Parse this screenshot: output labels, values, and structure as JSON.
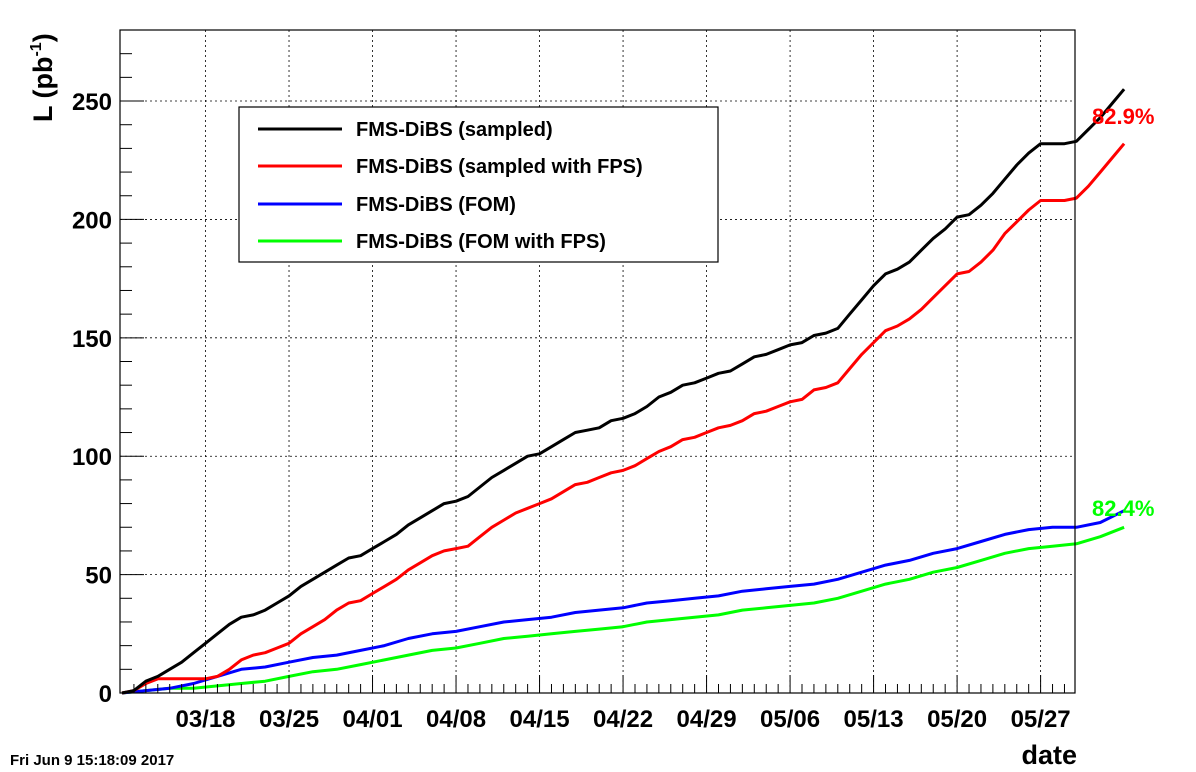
{
  "timestamp": "Fri Jun  9 15:18:09 2017",
  "annotations": [
    {
      "text": "82.9%",
      "color": "#ff0000",
      "anchor_value": 232
    },
    {
      "text": "82.4%",
      "color": "#00ff00",
      "anchor_value": 70
    }
  ],
  "chart_data": {
    "type": "line",
    "title": "",
    "xlabel": "date",
    "ylabel": "L (pb⁻¹)",
    "ylabel_main": "L (pb",
    "ylabel_sup": "-1",
    "ylabel_end": ")",
    "xlim": [
      "2017-03-11",
      "2017-05-30"
    ],
    "ylim": [
      0,
      280
    ],
    "grid": true,
    "legend_position": "top-left",
    "yticks": [
      0,
      50,
      100,
      150,
      200,
      250
    ],
    "xticks": [
      {
        "date": "2017-03-18",
        "label": "03/18"
      },
      {
        "date": "2017-03-25",
        "label": "03/25"
      },
      {
        "date": "2017-04-01",
        "label": "04/01"
      },
      {
        "date": "2017-04-08",
        "label": "04/08"
      },
      {
        "date": "2017-04-15",
        "label": "04/15"
      },
      {
        "date": "2017-04-22",
        "label": "04/22"
      },
      {
        "date": "2017-04-29",
        "label": "04/29"
      },
      {
        "date": "2017-05-06",
        "label": "05/06"
      },
      {
        "date": "2017-05-13",
        "label": "05/13"
      },
      {
        "date": "2017-05-20",
        "label": "05/20"
      },
      {
        "date": "2017-05-27",
        "label": "05/27"
      }
    ],
    "series": [
      {
        "name": "FMS-DiBS (sampled)",
        "color": "#000000",
        "points": [
          [
            "2017-03-11",
            0
          ],
          [
            "2017-03-12",
            1
          ],
          [
            "2017-03-13",
            5
          ],
          [
            "2017-03-14",
            7
          ],
          [
            "2017-03-15",
            10
          ],
          [
            "2017-03-16",
            13
          ],
          [
            "2017-03-17",
            17
          ],
          [
            "2017-03-18",
            21
          ],
          [
            "2017-03-19",
            25
          ],
          [
            "2017-03-20",
            29
          ],
          [
            "2017-03-21",
            32
          ],
          [
            "2017-03-22",
            33
          ],
          [
            "2017-03-23",
            35
          ],
          [
            "2017-03-24",
            38
          ],
          [
            "2017-03-25",
            41
          ],
          [
            "2017-03-26",
            45
          ],
          [
            "2017-03-27",
            48
          ],
          [
            "2017-03-28",
            51
          ],
          [
            "2017-03-29",
            54
          ],
          [
            "2017-03-30",
            57
          ],
          [
            "2017-03-31",
            58
          ],
          [
            "2017-04-01",
            61
          ],
          [
            "2017-04-02",
            64
          ],
          [
            "2017-04-03",
            67
          ],
          [
            "2017-04-04",
            71
          ],
          [
            "2017-04-05",
            74
          ],
          [
            "2017-04-06",
            77
          ],
          [
            "2017-04-07",
            80
          ],
          [
            "2017-04-08",
            81
          ],
          [
            "2017-04-09",
            83
          ],
          [
            "2017-04-10",
            87
          ],
          [
            "2017-04-11",
            91
          ],
          [
            "2017-04-12",
            94
          ],
          [
            "2017-04-13",
            97
          ],
          [
            "2017-04-14",
            100
          ],
          [
            "2017-04-15",
            101
          ],
          [
            "2017-04-16",
            104
          ],
          [
            "2017-04-17",
            107
          ],
          [
            "2017-04-18",
            110
          ],
          [
            "2017-04-19",
            111
          ],
          [
            "2017-04-20",
            112
          ],
          [
            "2017-04-21",
            115
          ],
          [
            "2017-04-22",
            116
          ],
          [
            "2017-04-23",
            118
          ],
          [
            "2017-04-24",
            121
          ],
          [
            "2017-04-25",
            125
          ],
          [
            "2017-04-26",
            127
          ],
          [
            "2017-04-27",
            130
          ],
          [
            "2017-04-28",
            131
          ],
          [
            "2017-04-29",
            133
          ],
          [
            "2017-04-30",
            135
          ],
          [
            "2017-05-01",
            136
          ],
          [
            "2017-05-02",
            139
          ],
          [
            "2017-05-03",
            142
          ],
          [
            "2017-05-04",
            143
          ],
          [
            "2017-05-05",
            145
          ],
          [
            "2017-05-06",
            147
          ],
          [
            "2017-05-07",
            148
          ],
          [
            "2017-05-08",
            151
          ],
          [
            "2017-05-09",
            152
          ],
          [
            "2017-05-10",
            154
          ],
          [
            "2017-05-11",
            160
          ],
          [
            "2017-05-12",
            166
          ],
          [
            "2017-05-13",
            172
          ],
          [
            "2017-05-14",
            177
          ],
          [
            "2017-05-15",
            179
          ],
          [
            "2017-05-16",
            182
          ],
          [
            "2017-05-17",
            187
          ],
          [
            "2017-05-18",
            192
          ],
          [
            "2017-05-19",
            196
          ],
          [
            "2017-05-20",
            201
          ],
          [
            "2017-05-21",
            202
          ],
          [
            "2017-05-22",
            206
          ],
          [
            "2017-05-23",
            211
          ],
          [
            "2017-05-24",
            217
          ],
          [
            "2017-05-25",
            223
          ],
          [
            "2017-05-26",
            228
          ],
          [
            "2017-05-27",
            232
          ],
          [
            "2017-05-28",
            232
          ],
          [
            "2017-05-29",
            232
          ],
          [
            "2017-05-30",
            233
          ],
          [
            "2017-05-31",
            238
          ],
          [
            "2017-06-01",
            243
          ],
          [
            "2017-06-02",
            249
          ],
          [
            "2017-06-03",
            255
          ]
        ]
      },
      {
        "name": "FMS-DiBS (sampled with FPS)",
        "color": "#ff0000",
        "points": [
          [
            "2017-03-11",
            0
          ],
          [
            "2017-03-12",
            1
          ],
          [
            "2017-03-13",
            4
          ],
          [
            "2017-03-14",
            6
          ],
          [
            "2017-03-15",
            6
          ],
          [
            "2017-03-16",
            6
          ],
          [
            "2017-03-17",
            6
          ],
          [
            "2017-03-18",
            6
          ],
          [
            "2017-03-19",
            7
          ],
          [
            "2017-03-20",
            10
          ],
          [
            "2017-03-21",
            14
          ],
          [
            "2017-03-22",
            16
          ],
          [
            "2017-03-23",
            17
          ],
          [
            "2017-03-24",
            19
          ],
          [
            "2017-03-25",
            21
          ],
          [
            "2017-03-26",
            25
          ],
          [
            "2017-03-27",
            28
          ],
          [
            "2017-03-28",
            31
          ],
          [
            "2017-03-29",
            35
          ],
          [
            "2017-03-30",
            38
          ],
          [
            "2017-03-31",
            39
          ],
          [
            "2017-04-01",
            42
          ],
          [
            "2017-04-02",
            45
          ],
          [
            "2017-04-03",
            48
          ],
          [
            "2017-04-04",
            52
          ],
          [
            "2017-04-05",
            55
          ],
          [
            "2017-04-06",
            58
          ],
          [
            "2017-04-07",
            60
          ],
          [
            "2017-04-08",
            61
          ],
          [
            "2017-04-09",
            62
          ],
          [
            "2017-04-10",
            66
          ],
          [
            "2017-04-11",
            70
          ],
          [
            "2017-04-12",
            73
          ],
          [
            "2017-04-13",
            76
          ],
          [
            "2017-04-14",
            78
          ],
          [
            "2017-04-15",
            80
          ],
          [
            "2017-04-16",
            82
          ],
          [
            "2017-04-17",
            85
          ],
          [
            "2017-04-18",
            88
          ],
          [
            "2017-04-19",
            89
          ],
          [
            "2017-04-20",
            91
          ],
          [
            "2017-04-21",
            93
          ],
          [
            "2017-04-22",
            94
          ],
          [
            "2017-04-23",
            96
          ],
          [
            "2017-04-24",
            99
          ],
          [
            "2017-04-25",
            102
          ],
          [
            "2017-04-26",
            104
          ],
          [
            "2017-04-27",
            107
          ],
          [
            "2017-04-28",
            108
          ],
          [
            "2017-04-29",
            110
          ],
          [
            "2017-04-30",
            112
          ],
          [
            "2017-05-01",
            113
          ],
          [
            "2017-05-02",
            115
          ],
          [
            "2017-05-03",
            118
          ],
          [
            "2017-05-04",
            119
          ],
          [
            "2017-05-05",
            121
          ],
          [
            "2017-05-06",
            123
          ],
          [
            "2017-05-07",
            124
          ],
          [
            "2017-05-08",
            128
          ],
          [
            "2017-05-09",
            129
          ],
          [
            "2017-05-10",
            131
          ],
          [
            "2017-05-11",
            137
          ],
          [
            "2017-05-12",
            143
          ],
          [
            "2017-05-13",
            148
          ],
          [
            "2017-05-14",
            153
          ],
          [
            "2017-05-15",
            155
          ],
          [
            "2017-05-16",
            158
          ],
          [
            "2017-05-17",
            162
          ],
          [
            "2017-05-18",
            167
          ],
          [
            "2017-05-19",
            172
          ],
          [
            "2017-05-20",
            177
          ],
          [
            "2017-05-21",
            178
          ],
          [
            "2017-05-22",
            182
          ],
          [
            "2017-05-23",
            187
          ],
          [
            "2017-05-24",
            194
          ],
          [
            "2017-05-25",
            199
          ],
          [
            "2017-05-26",
            204
          ],
          [
            "2017-05-27",
            208
          ],
          [
            "2017-05-28",
            208
          ],
          [
            "2017-05-29",
            208
          ],
          [
            "2017-05-30",
            209
          ],
          [
            "2017-05-31",
            214
          ],
          [
            "2017-06-01",
            220
          ],
          [
            "2017-06-02",
            226
          ],
          [
            "2017-06-03",
            232
          ]
        ]
      },
      {
        "name": "FMS-DiBS (FOM)",
        "color": "#0000ff",
        "points": [
          [
            "2017-03-11",
            0
          ],
          [
            "2017-03-13",
            1
          ],
          [
            "2017-03-15",
            2
          ],
          [
            "2017-03-17",
            4
          ],
          [
            "2017-03-19",
            7
          ],
          [
            "2017-03-21",
            10
          ],
          [
            "2017-03-23",
            11
          ],
          [
            "2017-03-25",
            13
          ],
          [
            "2017-03-27",
            15
          ],
          [
            "2017-03-29",
            16
          ],
          [
            "2017-03-31",
            18
          ],
          [
            "2017-04-02",
            20
          ],
          [
            "2017-04-04",
            23
          ],
          [
            "2017-04-06",
            25
          ],
          [
            "2017-04-08",
            26
          ],
          [
            "2017-04-10",
            28
          ],
          [
            "2017-04-12",
            30
          ],
          [
            "2017-04-14",
            31
          ],
          [
            "2017-04-16",
            32
          ],
          [
            "2017-04-18",
            34
          ],
          [
            "2017-04-20",
            35
          ],
          [
            "2017-04-22",
            36
          ],
          [
            "2017-04-24",
            38
          ],
          [
            "2017-04-26",
            39
          ],
          [
            "2017-04-28",
            40
          ],
          [
            "2017-04-30",
            41
          ],
          [
            "2017-05-02",
            43
          ],
          [
            "2017-05-04",
            44
          ],
          [
            "2017-05-06",
            45
          ],
          [
            "2017-05-08",
            46
          ],
          [
            "2017-05-10",
            48
          ],
          [
            "2017-05-12",
            51
          ],
          [
            "2017-05-14",
            54
          ],
          [
            "2017-05-16",
            56
          ],
          [
            "2017-05-18",
            59
          ],
          [
            "2017-05-20",
            61
          ],
          [
            "2017-05-22",
            64
          ],
          [
            "2017-05-24",
            67
          ],
          [
            "2017-05-26",
            69
          ],
          [
            "2017-05-28",
            70
          ],
          [
            "2017-05-30",
            70
          ],
          [
            "2017-06-01",
            72
          ],
          [
            "2017-06-03",
            77
          ]
        ]
      },
      {
        "name": "FMS-DiBS (FOM with FPS)",
        "color": "#00ff00",
        "points": [
          [
            "2017-03-11",
            0
          ],
          [
            "2017-03-13",
            1
          ],
          [
            "2017-03-15",
            2
          ],
          [
            "2017-03-17",
            2
          ],
          [
            "2017-03-19",
            3
          ],
          [
            "2017-03-21",
            4
          ],
          [
            "2017-03-23",
            5
          ],
          [
            "2017-03-25",
            7
          ],
          [
            "2017-03-27",
            9
          ],
          [
            "2017-03-29",
            10
          ],
          [
            "2017-03-31",
            12
          ],
          [
            "2017-04-02",
            14
          ],
          [
            "2017-04-04",
            16
          ],
          [
            "2017-04-06",
            18
          ],
          [
            "2017-04-08",
            19
          ],
          [
            "2017-04-10",
            21
          ],
          [
            "2017-04-12",
            23
          ],
          [
            "2017-04-14",
            24
          ],
          [
            "2017-04-16",
            25
          ],
          [
            "2017-04-18",
            26
          ],
          [
            "2017-04-20",
            27
          ],
          [
            "2017-04-22",
            28
          ],
          [
            "2017-04-24",
            30
          ],
          [
            "2017-04-26",
            31
          ],
          [
            "2017-04-28",
            32
          ],
          [
            "2017-04-30",
            33
          ],
          [
            "2017-05-02",
            35
          ],
          [
            "2017-05-04",
            36
          ],
          [
            "2017-05-06",
            37
          ],
          [
            "2017-05-08",
            38
          ],
          [
            "2017-05-10",
            40
          ],
          [
            "2017-05-12",
            43
          ],
          [
            "2017-05-14",
            46
          ],
          [
            "2017-05-16",
            48
          ],
          [
            "2017-05-18",
            51
          ],
          [
            "2017-05-20",
            53
          ],
          [
            "2017-05-22",
            56
          ],
          [
            "2017-05-24",
            59
          ],
          [
            "2017-05-26",
            61
          ],
          [
            "2017-05-28",
            62
          ],
          [
            "2017-05-30",
            63
          ],
          [
            "2017-06-01",
            66
          ],
          [
            "2017-06-03",
            70
          ]
        ]
      }
    ]
  }
}
